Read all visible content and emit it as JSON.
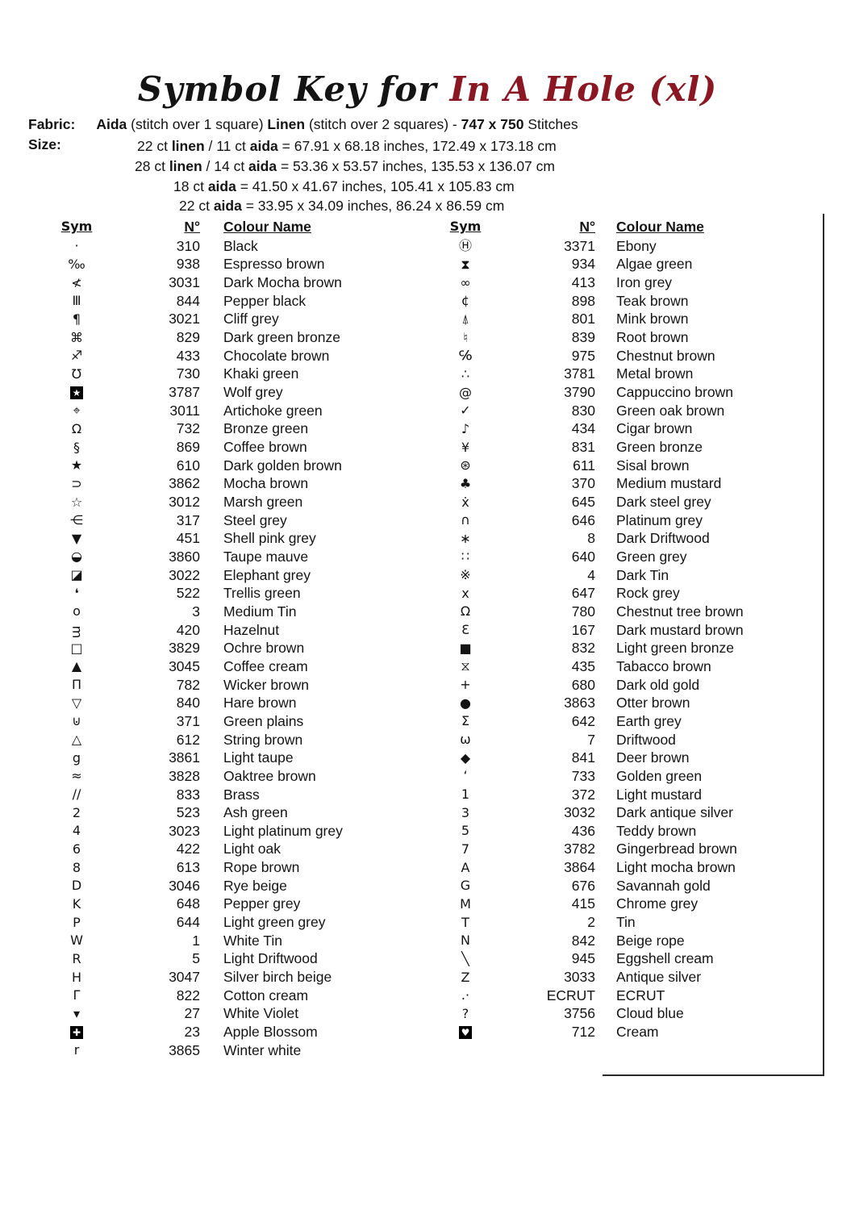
{
  "title": {
    "prefix": "Symbol Key for",
    "project": "In A Hole (xl)",
    "accent_color": "#8a1722"
  },
  "fabric": {
    "label": "Fabric:",
    "segments": [
      {
        "t": "Aida",
        "b": true
      },
      {
        "t": "  (stitch over 1 square)    ",
        "b": false
      },
      {
        "t": "Linen",
        "b": true
      },
      {
        "t": "  (stitch over 2 squares) -  ",
        "b": false
      },
      {
        "t": "747 x 750",
        "b": true
      },
      {
        "t": " Stitches",
        "b": false
      }
    ]
  },
  "size": {
    "label": "Size:",
    "lines": [
      {
        "indent": 170,
        "segments": [
          {
            "t": "22 ct ",
            "b": false
          },
          {
            "t": "linen",
            "b": true
          },
          {
            "t": " / 11 ct ",
            "b": false
          },
          {
            "t": "aida",
            "b": true
          },
          {
            "t": " = 67.91 x 68.18 inches, 172.49 x 173.18 cm",
            "b": false
          }
        ]
      },
      {
        "indent": 167,
        "segments": [
          {
            "t": "28 ct ",
            "b": false
          },
          {
            "t": "linen",
            "b": true
          },
          {
            "t": " / 14 ct ",
            "b": false
          },
          {
            "t": "aida",
            "b": true
          },
          {
            "t": " = 53.36 x 53.57 inches, 135.53 x 136.07 cm",
            "b": false
          }
        ]
      },
      {
        "indent": 215,
        "segments": [
          {
            "t": "18 ct ",
            "b": false
          },
          {
            "t": "aida",
            "b": true
          },
          {
            "t": "  = 41.50 x 41.67 inches, 105.41 x 105.83 cm",
            "b": false
          }
        ]
      },
      {
        "indent": 222,
        "segments": [
          {
            "t": "22 ct ",
            "b": false
          },
          {
            "t": "aida",
            "b": true
          },
          {
            "t": " = 33.95 x 34.09 inches, 86.24 x 86.59 cm",
            "b": false
          }
        ]
      }
    ]
  },
  "key_table": {
    "headers": {
      "sym": "Sym",
      "num": "N°",
      "name": "Colour Name"
    },
    "left": [
      {
        "s": "·",
        "n": "310",
        "c": "Black"
      },
      {
        "s": "‰",
        "n": "938",
        "c": "Espresso brown"
      },
      {
        "s": "≮",
        "n": "3031",
        "c": "Dark Mocha brown"
      },
      {
        "s": "Ⅲ",
        "n": "844",
        "c": "Pepper black"
      },
      {
        "s": "¶",
        "n": "3021",
        "c": "Cliff grey"
      },
      {
        "s": "⌘",
        "n": "829",
        "c": "Dark green bronze"
      },
      {
        "s": "♐",
        "n": "433",
        "c": "Chocolate brown"
      },
      {
        "s": "℧",
        "n": "730",
        "c": "Khaki green"
      },
      {
        "s": "★",
        "n": "3787",
        "c": "Wolf grey",
        "inv": true
      },
      {
        "s": "⌖",
        "n": "3011",
        "c": "Artichoke green"
      },
      {
        "s": "Ω",
        "n": "732",
        "c": "Bronze green"
      },
      {
        "s": "§",
        "n": "869",
        "c": "Coffee brown"
      },
      {
        "s": "★",
        "n": "610",
        "c": "Dark golden brown"
      },
      {
        "s": "⊃",
        "n": "3862",
        "c": "Mocha brown"
      },
      {
        "s": "☆",
        "n": "3012",
        "c": "Marsh green"
      },
      {
        "s": "⋲",
        "n": "317",
        "c": "Steel grey"
      },
      {
        "s": "▼",
        "n": "451",
        "c": "Shell pink grey"
      },
      {
        "s": "◒",
        "n": "3860",
        "c": "Taupe mauve"
      },
      {
        "s": "◪",
        "n": "3022",
        "c": "Elephant grey"
      },
      {
        "s": "❛",
        "n": "522",
        "c": "Trellis green"
      },
      {
        "s": "o",
        "n": "3",
        "c": "Medium Tin"
      },
      {
        "s": "ᴟ",
        "n": "420",
        "c": "Hazelnut"
      },
      {
        "s": "□",
        "n": "3829",
        "c": "Ochre brown"
      },
      {
        "s": "▲",
        "n": "3045",
        "c": "Coffee cream"
      },
      {
        "s": "Π",
        "n": "782",
        "c": "Wicker brown"
      },
      {
        "s": "▽",
        "n": "840",
        "c": "Hare brown"
      },
      {
        "s": "⊍",
        "n": "371",
        "c": "Green plains"
      },
      {
        "s": "△",
        "n": "612",
        "c": "String brown"
      },
      {
        "s": "g",
        "n": "3861",
        "c": "Light taupe"
      },
      {
        "s": "≈",
        "n": "3828",
        "c": "Oaktree brown"
      },
      {
        "s": "∕∕",
        "n": "833",
        "c": "Brass"
      },
      {
        "s": "2",
        "n": "523",
        "c": "Ash green"
      },
      {
        "s": "4",
        "n": "3023",
        "c": "Light platinum grey"
      },
      {
        "s": "6",
        "n": "422",
        "c": "Light oak"
      },
      {
        "s": "8",
        "n": "613",
        "c": "Rope brown"
      },
      {
        "s": "D",
        "n": "3046",
        "c": "Rye beige"
      },
      {
        "s": "K",
        "n": "648",
        "c": "Pepper grey"
      },
      {
        "s": "P",
        "n": "644",
        "c": "Light green grey"
      },
      {
        "s": "W",
        "n": "1",
        "c": "White Tin"
      },
      {
        "s": "R",
        "n": "5",
        "c": "Light Driftwood"
      },
      {
        "s": "H",
        "n": "3047",
        "c": "Silver birch beige"
      },
      {
        "s": "Γ",
        "n": "822",
        "c": "Cotton cream"
      },
      {
        "s": "▾",
        "n": "27",
        "c": "White Violet"
      },
      {
        "s": "✚",
        "n": "23",
        "c": "Apple Blossom",
        "inv": true
      },
      {
        "s": "r",
        "n": "3865",
        "c": "Winter white"
      }
    ],
    "right": [
      {
        "s": "Ⓗ",
        "n": "3371",
        "c": "Ebony"
      },
      {
        "s": "⧗",
        "n": "934",
        "c": "Algae green"
      },
      {
        "s": "∞",
        "n": "413",
        "c": "Iron grey"
      },
      {
        "s": "¢",
        "n": "898",
        "c": "Teak brown"
      },
      {
        "s": "⍋",
        "n": "801",
        "c": "Mink brown"
      },
      {
        "s": "♮",
        "n": "839",
        "c": "Root brown"
      },
      {
        "s": "℅",
        "n": "975",
        "c": "Chestnut brown"
      },
      {
        "s": "∴",
        "n": "3781",
        "c": "Metal brown"
      },
      {
        "s": "@",
        "n": "3790",
        "c": "Cappuccino brown"
      },
      {
        "s": "✓",
        "n": "830",
        "c": "Green oak brown"
      },
      {
        "s": "♪",
        "n": "434",
        "c": "Cigar brown"
      },
      {
        "s": "¥",
        "n": "831",
        "c": "Green bronze"
      },
      {
        "s": "⊛",
        "n": "611",
        "c": "Sisal brown"
      },
      {
        "s": "♣",
        "n": "370",
        "c": "Medium mustard"
      },
      {
        "s": "ẋ",
        "n": "645",
        "c": "Dark steel grey"
      },
      {
        "s": "∩",
        "n": "646",
        "c": "Platinum grey"
      },
      {
        "s": "∗",
        "n": "8",
        "c": "Dark Driftwood"
      },
      {
        "s": "∷",
        "n": "640",
        "c": "Green grey"
      },
      {
        "s": "※",
        "n": "4",
        "c": "Dark Tin"
      },
      {
        "s": "x",
        "n": "647",
        "c": "Rock grey"
      },
      {
        "s": "Ω",
        "n": "780",
        "c": "Chestnut tree brown"
      },
      {
        "s": "Ɛ",
        "n": "167",
        "c": "Dark mustard brown"
      },
      {
        "s": "■",
        "n": "832",
        "c": "Light green bronze"
      },
      {
        "s": "⧖",
        "n": "435",
        "c": "Tabacco brown"
      },
      {
        "s": "+",
        "n": "680",
        "c": "Dark old gold"
      },
      {
        "s": "●",
        "n": "3863",
        "c": "Otter brown"
      },
      {
        "s": "Σ",
        "n": "642",
        "c": "Earth grey"
      },
      {
        "s": "ω",
        "n": "7",
        "c": "Driftwood"
      },
      {
        "s": "◆",
        "n": "841",
        "c": "Deer brown"
      },
      {
        "s": "‘",
        "n": "733",
        "c": "Golden green"
      },
      {
        "s": "1",
        "n": "372",
        "c": "Light mustard"
      },
      {
        "s": "3",
        "n": "3032",
        "c": "Dark antique silver"
      },
      {
        "s": "5",
        "n": "436",
        "c": "Teddy brown"
      },
      {
        "s": "7",
        "n": "3782",
        "c": "Gingerbread brown"
      },
      {
        "s": "A",
        "n": "3864",
        "c": "Light mocha brown"
      },
      {
        "s": "G",
        "n": "676",
        "c": "Savannah gold"
      },
      {
        "s": "M",
        "n": "415",
        "c": "Chrome grey"
      },
      {
        "s": "T",
        "n": "2",
        "c": "Tin"
      },
      {
        "s": "N",
        "n": "842",
        "c": "Beige rope"
      },
      {
        "s": "╲",
        "n": "945",
        "c": "Eggshell cream"
      },
      {
        "s": "Z",
        "n": "3033",
        "c": "Antique silver"
      },
      {
        "s": ".·",
        "n": "ECRUT",
        "c": "ECRUT"
      },
      {
        "s": "?",
        "n": "3756",
        "c": "Cloud blue"
      },
      {
        "s": "♥",
        "n": "712",
        "c": "Cream",
        "inv": true
      }
    ]
  }
}
